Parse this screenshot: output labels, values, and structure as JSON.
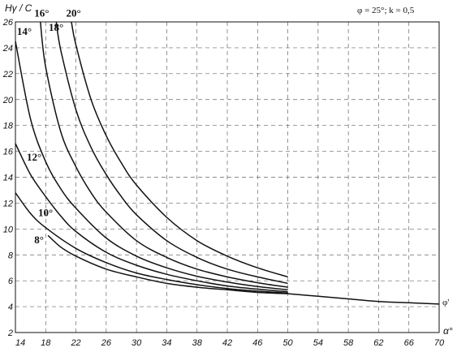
{
  "chart_data": {
    "type": "line",
    "ylabel": "Hγ / C",
    "xlabel": "α°",
    "title": "φ = 25°;  k = 0,5",
    "curve_end_label": "φ'",
    "xlim": [
      14,
      70
    ],
    "ylim": [
      2,
      26
    ],
    "x_ticks": [
      14,
      18,
      22,
      26,
      30,
      34,
      38,
      42,
      46,
      50,
      54,
      58,
      62,
      66,
      70
    ],
    "y_ticks": [
      2,
      4,
      6,
      8,
      10,
      12,
      14,
      16,
      18,
      20,
      22,
      24,
      26
    ],
    "grid": true,
    "envelope": [
      {
        "x": 50,
        "y": 5.0
      },
      {
        "x": 54,
        "y": 4.8
      },
      {
        "x": 58,
        "y": 4.6
      },
      {
        "x": 62,
        "y": 4.4
      },
      {
        "x": 66,
        "y": 4.3
      },
      {
        "x": 70,
        "y": 4.2
      }
    ],
    "series": [
      {
        "name": "8°",
        "points": [
          {
            "x": 18.3,
            "y": 9.5
          },
          {
            "x": 20,
            "y": 8.6
          },
          {
            "x": 22,
            "y": 7.9
          },
          {
            "x": 26,
            "y": 6.9
          },
          {
            "x": 30,
            "y": 6.3
          },
          {
            "x": 34,
            "y": 5.8
          },
          {
            "x": 38,
            "y": 5.5
          },
          {
            "x": 42,
            "y": 5.3
          },
          {
            "x": 46,
            "y": 5.1
          },
          {
            "x": 50,
            "y": 5.0
          }
        ]
      },
      {
        "name": "10°",
        "points": [
          {
            "x": 14,
            "y": 12.8
          },
          {
            "x": 16,
            "y": 11.2
          },
          {
            "x": 18,
            "y": 10.1
          },
          {
            "x": 22,
            "y": 8.5
          },
          {
            "x": 26,
            "y": 7.4
          },
          {
            "x": 30,
            "y": 6.6
          },
          {
            "x": 34,
            "y": 6.1
          },
          {
            "x": 38,
            "y": 5.7
          },
          {
            "x": 42,
            "y": 5.4
          },
          {
            "x": 46,
            "y": 5.2
          },
          {
            "x": 50,
            "y": 5.05
          }
        ]
      },
      {
        "name": "12°",
        "points": [
          {
            "x": 14,
            "y": 16.6
          },
          {
            "x": 16,
            "y": 14.2
          },
          {
            "x": 18,
            "y": 12.5
          },
          {
            "x": 20,
            "y": 11.0
          },
          {
            "x": 22,
            "y": 9.8
          },
          {
            "x": 26,
            "y": 8.2
          },
          {
            "x": 30,
            "y": 7.2
          },
          {
            "x": 34,
            "y": 6.5
          },
          {
            "x": 38,
            "y": 6.0
          },
          {
            "x": 42,
            "y": 5.6
          },
          {
            "x": 46,
            "y": 5.35
          },
          {
            "x": 50,
            "y": 5.15
          }
        ]
      },
      {
        "name": "14°",
        "points": [
          {
            "x": 14,
            "y": 24.5
          },
          {
            "x": 16,
            "y": 18.5
          },
          {
            "x": 18,
            "y": 15.2
          },
          {
            "x": 20,
            "y": 13.1
          },
          {
            "x": 22,
            "y": 11.6
          },
          {
            "x": 26,
            "y": 9.3
          },
          {
            "x": 30,
            "y": 7.9
          },
          {
            "x": 34,
            "y": 7.0
          },
          {
            "x": 38,
            "y": 6.35
          },
          {
            "x": 42,
            "y": 5.9
          },
          {
            "x": 46,
            "y": 5.55
          },
          {
            "x": 50,
            "y": 5.3
          }
        ]
      },
      {
        "name": "16°",
        "points": [
          {
            "x": 17.3,
            "y": 26
          },
          {
            "x": 18,
            "y": 22.5
          },
          {
            "x": 20,
            "y": 17.5
          },
          {
            "x": 22,
            "y": 14.8
          },
          {
            "x": 24,
            "y": 12.8
          },
          {
            "x": 26,
            "y": 11.3
          },
          {
            "x": 30,
            "y": 9.1
          },
          {
            "x": 34,
            "y": 7.8
          },
          {
            "x": 38,
            "y": 6.9
          },
          {
            "x": 42,
            "y": 6.3
          },
          {
            "x": 46,
            "y": 5.85
          },
          {
            "x": 50,
            "y": 5.5
          }
        ]
      },
      {
        "name": "18°",
        "points": [
          {
            "x": 19.4,
            "y": 26
          },
          {
            "x": 20,
            "y": 23.8
          },
          {
            "x": 22,
            "y": 19.2
          },
          {
            "x": 24,
            "y": 16.3
          },
          {
            "x": 26,
            "y": 14.2
          },
          {
            "x": 28,
            "y": 12.5
          },
          {
            "x": 30,
            "y": 11.1
          },
          {
            "x": 34,
            "y": 9.1
          },
          {
            "x": 38,
            "y": 7.8
          },
          {
            "x": 42,
            "y": 6.9
          },
          {
            "x": 46,
            "y": 6.3
          },
          {
            "x": 50,
            "y": 5.8
          }
        ]
      },
      {
        "name": "20°",
        "points": [
          {
            "x": 21.4,
            "y": 26
          },
          {
            "x": 22,
            "y": 24.2
          },
          {
            "x": 24,
            "y": 20.0
          },
          {
            "x": 26,
            "y": 17.2
          },
          {
            "x": 28,
            "y": 15.1
          },
          {
            "x": 30,
            "y": 13.4
          },
          {
            "x": 34,
            "y": 10.9
          },
          {
            "x": 38,
            "y": 9.1
          },
          {
            "x": 42,
            "y": 7.9
          },
          {
            "x": 46,
            "y": 7.0
          },
          {
            "x": 50,
            "y": 6.3
          }
        ]
      }
    ],
    "series_label_positions": [
      {
        "name": "8°",
        "x": 16.5,
        "y": 8.9
      },
      {
        "name": "10°",
        "x": 17.0,
        "y": 11.0
      },
      {
        "name": "12°",
        "x": 15.5,
        "y": 15.3
      },
      {
        "name": "14°",
        "x": 14.2,
        "y": 25.0
      },
      {
        "name": "16°",
        "x": 16.5,
        "y": 26.4
      },
      {
        "name": "18°",
        "x": 18.4,
        "y": 25.3
      },
      {
        "name": "20°",
        "x": 20.7,
        "y": 26.4
      }
    ]
  }
}
